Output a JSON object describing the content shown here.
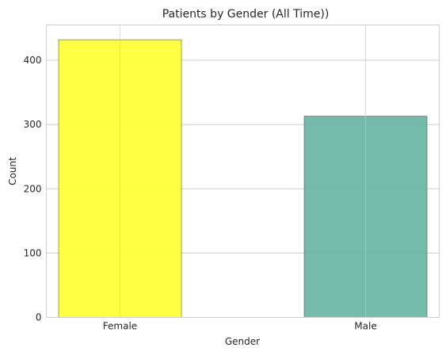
{
  "chart_data": {
    "type": "bar",
    "title": "Patients by Gender (All Time))",
    "xlabel": "Gender",
    "ylabel": "Count",
    "categories": [
      "Female",
      "Male"
    ],
    "values": [
      432,
      313
    ],
    "colors": [
      "#ffff33",
      "#66b3a1"
    ],
    "ylim": [
      0,
      455
    ],
    "yticks": [
      0,
      100,
      200,
      300,
      400
    ],
    "grid": true
  }
}
